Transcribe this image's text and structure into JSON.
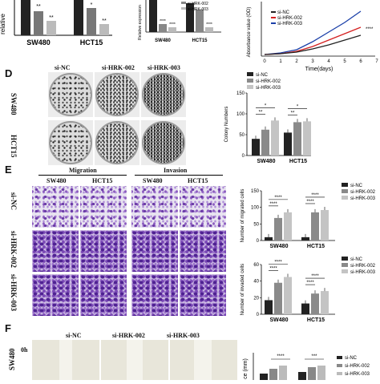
{
  "panel_top": {
    "chart_b": {
      "ylabel_partial": "relative",
      "groups": [
        "SW480",
        "HCT15"
      ],
      "stars": [
        "**",
        "**",
        "*",
        "**",
        "*"
      ]
    },
    "chart_c": {
      "ylabel": "Relative expression",
      "legend": [
        "si-HRK-002",
        "si-HRK-003"
      ],
      "groups": [
        "SW480",
        "HCT15"
      ],
      "stars": [
        "****",
        "****",
        "****"
      ]
    },
    "chart_growth": {
      "legend": [
        "si-NC",
        "si-HRK-002",
        "si-HRK-003"
      ],
      "xlabel": "Time(days)",
      "ylabel": "Absorbance value (OD)",
      "x_ticks": [
        "0",
        "1",
        "2",
        "3",
        "4",
        "5",
        "6",
        "7"
      ],
      "stars": "****"
    }
  },
  "panel_d": {
    "letter": "D",
    "row_labels": [
      "SW480",
      "HCT15"
    ],
    "col_labels": [
      "si-NC",
      "si-HRK-002",
      "si-HRK-003"
    ]
  },
  "panel_e": {
    "letter": "E",
    "headers": [
      "Migration",
      "Invasion"
    ],
    "sub_headers": [
      "SW480",
      "HCT15",
      "SW480",
      "HCT15"
    ],
    "row_labels": [
      "si-NC",
      "si-HRK-002",
      "si-HRK-003"
    ]
  },
  "panel_f": {
    "letter": "F",
    "col_labels": [
      "si-NC",
      "si-HRK-002",
      "si-HRK-003"
    ],
    "row_label": "SW480",
    "time_label": "0h",
    "legend": [
      "si-NC",
      "si-HRK-002",
      "si-HRK-003"
    ],
    "stars": [
      "****",
      "***"
    ],
    "ylabel_partial": "ce (mm)"
  },
  "chart_data": [
    {
      "type": "bar",
      "id": "colony",
      "ylabel": "Colony Numbers",
      "categories": [
        "SW480",
        "HCT15"
      ],
      "series": [
        {
          "name": "si-NC",
          "values": [
            40,
            55
          ]
        },
        {
          "name": "si-HRK-002",
          "values": [
            62,
            80
          ]
        },
        {
          "name": "si-HRK-003",
          "values": [
            84,
            82
          ]
        }
      ],
      "ylim": [
        0,
        150
      ],
      "y_ticks": [
        "0",
        "50",
        "100",
        "150"
      ],
      "significance": [
        "**",
        "*",
        "**",
        "*"
      ],
      "legend_position": "top"
    },
    {
      "type": "bar",
      "id": "migrated",
      "ylabel": "Number of migrated cells",
      "categories": [
        "SW480",
        "HCT15"
      ],
      "series": [
        {
          "name": "si-NC",
          "values": [
            10,
            10
          ]
        },
        {
          "name": "si-HRK-002",
          "values": [
            68,
            85
          ]
        },
        {
          "name": "si-HRK-003",
          "values": [
            85,
            92
          ]
        }
      ],
      "ylim": [
        0,
        150
      ],
      "y_ticks": [
        "0",
        "50",
        "100",
        "150"
      ],
      "significance": [
        "****",
        "****",
        "****",
        "****"
      ],
      "legend_position": "right"
    },
    {
      "type": "bar",
      "id": "invaded",
      "ylabel": "Number of invaded cells",
      "categories": [
        "SW480",
        "HCT15"
      ],
      "series": [
        {
          "name": "si-NC",
          "values": [
            17,
            13
          ]
        },
        {
          "name": "si-HRK-002",
          "values": [
            38,
            25
          ]
        },
        {
          "name": "si-HRK-003",
          "values": [
            45,
            28
          ]
        }
      ],
      "ylim": [
        0,
        60
      ],
      "y_ticks": [
        "0",
        "20",
        "40",
        "60"
      ],
      "significance": [
        "****",
        "****",
        "****",
        "****"
      ],
      "legend_position": "right"
    }
  ]
}
